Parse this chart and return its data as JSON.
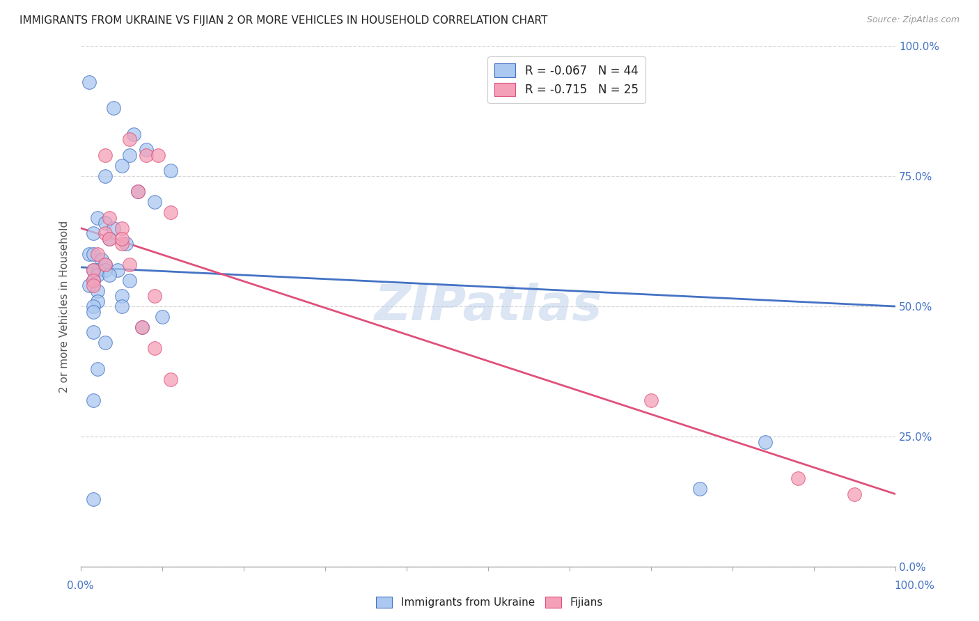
{
  "title": "IMMIGRANTS FROM UKRAINE VS FIJIAN 2 OR MORE VEHICLES IN HOUSEHOLD CORRELATION CHART",
  "source": "Source: ZipAtlas.com",
  "ylabel": "2 or more Vehicles in Household",
  "ukraine_R": -0.067,
  "ukraine_N": 44,
  "fijian_R": -0.715,
  "fijian_N": 25,
  "ukraine_color": "#aac8f0",
  "ukraine_line_color": "#4472c4",
  "fijian_color": "#f4a0b8",
  "fijian_line_color": "#e0507a",
  "watermark": "ZIPatlas",
  "background_color": "#ffffff",
  "grid_color": "#d8d8d8",
  "title_color": "#222222",
  "axis_label_color": "#4472c4",
  "ukraine_scatter_x": [
    1.0,
    4.0,
    6.5,
    8.0,
    6.0,
    5.0,
    11.0,
    3.0,
    7.0,
    9.0,
    2.0,
    3.0,
    4.0,
    1.5,
    3.5,
    5.5,
    1.0,
    1.5,
    2.5,
    3.0,
    2.0,
    1.5,
    4.5,
    3.0,
    2.0,
    3.5,
    6.0,
    1.5,
    1.0,
    2.0,
    5.0,
    2.0,
    1.5,
    5.0,
    1.5,
    10.0,
    7.5,
    1.5,
    3.0,
    2.0,
    1.5,
    84.0,
    76.0,
    1.5
  ],
  "ukraine_scatter_y": [
    93.0,
    88.0,
    83.0,
    80.0,
    79.0,
    77.0,
    76.0,
    75.0,
    72.0,
    70.0,
    67.0,
    66.0,
    65.0,
    64.0,
    63.0,
    62.0,
    60.0,
    60.0,
    59.0,
    58.0,
    57.0,
    57.0,
    57.0,
    57.0,
    56.0,
    56.0,
    55.0,
    55.0,
    54.0,
    53.0,
    52.0,
    51.0,
    50.0,
    50.0,
    49.0,
    48.0,
    46.0,
    45.0,
    43.0,
    38.0,
    32.0,
    24.0,
    15.0,
    13.0
  ],
  "fijian_scatter_x": [
    3.0,
    6.0,
    8.0,
    9.5,
    11.0,
    3.5,
    5.0,
    7.0,
    3.0,
    5.0,
    2.0,
    3.5,
    5.0,
    6.0,
    1.5,
    3.0,
    1.5,
    1.5,
    9.0,
    7.5,
    9.0,
    11.0,
    70.0,
    88.0,
    95.0
  ],
  "fijian_scatter_y": [
    79.0,
    82.0,
    79.0,
    79.0,
    68.0,
    67.0,
    65.0,
    72.0,
    64.0,
    62.0,
    60.0,
    63.0,
    63.0,
    58.0,
    57.0,
    58.0,
    55.0,
    54.0,
    52.0,
    46.0,
    42.0,
    36.0,
    32.0,
    17.0,
    14.0
  ],
  "ukraine_line_x0": 0,
  "ukraine_line_x1": 100,
  "ukraine_line_y0": 57.5,
  "ukraine_line_y1": 50.0,
  "fijian_line_x0": 0,
  "fijian_line_x1": 100,
  "fijian_line_y0": 65.0,
  "fijian_line_y1": 14.0,
  "xmin": 0,
  "xmax": 100,
  "ymin": 0,
  "ymax": 100,
  "yticks": [
    0,
    25,
    50,
    75,
    100
  ],
  "ytick_labels": [
    "0.0%",
    "25.0%",
    "50.0%",
    "75.0%",
    "100.0%"
  ]
}
